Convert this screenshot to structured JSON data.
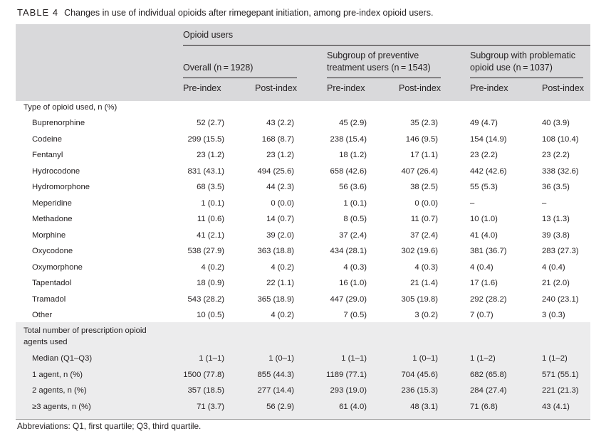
{
  "caption": {
    "label": "TABLE 4",
    "text": "Changes in use of individual opioids after rimegepant initiation, among pre-index opioid users."
  },
  "header": {
    "top": "Opioid users",
    "groups": [
      {
        "line1": "Overall (n = 1928)",
        "line2": ""
      },
      {
        "line1": "Subgroup of preventive",
        "line2": "treatment users (n = 1543)"
      },
      {
        "line1": "Subgroup with problematic",
        "line2": "opioid use (n = 1037)"
      }
    ],
    "cols": [
      "Pre-index",
      "Post-index",
      "Pre-index",
      "Post-index",
      "Pre-index",
      "Post-index"
    ]
  },
  "section1": {
    "title": "Type of opioid used, n (%)",
    "rows": [
      {
        "label": "Buprenorphine",
        "v": [
          "52 (2.7)",
          "43 (2.2)",
          "45 (2.9)",
          "35 (2.3)",
          "49 (4.7)",
          "40 (3.9)"
        ]
      },
      {
        "label": "Codeine",
        "v": [
          "299 (15.5)",
          "168 (8.7)",
          "238 (15.4)",
          "146 (9.5)",
          "154 (14.9)",
          "108 (10.4)"
        ]
      },
      {
        "label": "Fentanyl",
        "v": [
          "23 (1.2)",
          "23 (1.2)",
          "18 (1.2)",
          "17 (1.1)",
          "23 (2.2)",
          "23 (2.2)"
        ]
      },
      {
        "label": "Hydrocodone",
        "v": [
          "831 (43.1)",
          "494 (25.6)",
          "658 (42.6)",
          "407 (26.4)",
          "442 (42.6)",
          "338 (32.6)"
        ]
      },
      {
        "label": "Hydromorphone",
        "v": [
          "68 (3.5)",
          "44 (2.3)",
          "56 (3.6)",
          "38 (2.5)",
          "55 (5.3)",
          "36 (3.5)"
        ]
      },
      {
        "label": "Meperidine",
        "v": [
          "1 (0.1)",
          "0 (0.0)",
          "1 (0.1)",
          "0 (0.0)",
          "–",
          "–"
        ]
      },
      {
        "label": "Methadone",
        "v": [
          "11 (0.6)",
          "14 (0.7)",
          "8 (0.5)",
          "11 (0.7)",
          "10 (1.0)",
          "13 (1.3)"
        ]
      },
      {
        "label": "Morphine",
        "v": [
          "41 (2.1)",
          "39 (2.0)",
          "37 (2.4)",
          "37 (2.4)",
          "41 (4.0)",
          "39 (3.8)"
        ]
      },
      {
        "label": "Oxycodone",
        "v": [
          "538 (27.9)",
          "363 (18.8)",
          "434 (28.1)",
          "302 (19.6)",
          "381 (36.7)",
          "283 (27.3)"
        ]
      },
      {
        "label": "Oxymorphone",
        "v": [
          "4 (0.2)",
          "4 (0.2)",
          "4 (0.3)",
          "4 (0.3)",
          "4 (0.4)",
          "4 (0.4)"
        ]
      },
      {
        "label": "Tapentadol",
        "v": [
          "18 (0.9)",
          "22 (1.1)",
          "16 (1.0)",
          "21 (1.4)",
          "17 (1.6)",
          "21 (2.0)"
        ]
      },
      {
        "label": "Tramadol",
        "v": [
          "543 (28.2)",
          "365 (18.9)",
          "447 (29.0)",
          "305 (19.8)",
          "292 (28.2)",
          "240 (23.1)"
        ]
      },
      {
        "label": "Other",
        "v": [
          "10 (0.5)",
          "4 (0.2)",
          "7 (0.5)",
          "3 (0.2)",
          "7 (0.7)",
          "3 (0.3)"
        ]
      }
    ]
  },
  "section2": {
    "title_line1": "Total number of prescription opioid",
    "title_line2": "agents used",
    "rows": [
      {
        "label": "Median (Q1–Q3)",
        "v": [
          "1 (1–1)",
          "1 (0–1)",
          "1 (1–1)",
          "1 (0–1)",
          "1 (1–2)",
          "1 (1–2)"
        ]
      },
      {
        "label": "1 agent, n (%)",
        "v": [
          "1500 (77.8)",
          "855 (44.3)",
          "1189 (77.1)",
          "704 (45.6)",
          "682 (65.8)",
          "571 (55.1)"
        ]
      },
      {
        "label": "2 agents, n (%)",
        "v": [
          "357 (18.5)",
          "277 (14.4)",
          "293 (19.0)",
          "236 (15.3)",
          "284 (27.4)",
          "221 (21.3)"
        ]
      },
      {
        "label": "≥3 agents, n (%)",
        "v": [
          "71 (3.7)",
          "56 (2.9)",
          "61 (4.0)",
          "48 (3.1)",
          "71 (6.8)",
          "43 (4.1)"
        ]
      }
    ]
  },
  "footnote": "Abbreviations: Q1, first quartile; Q3, third quartile."
}
